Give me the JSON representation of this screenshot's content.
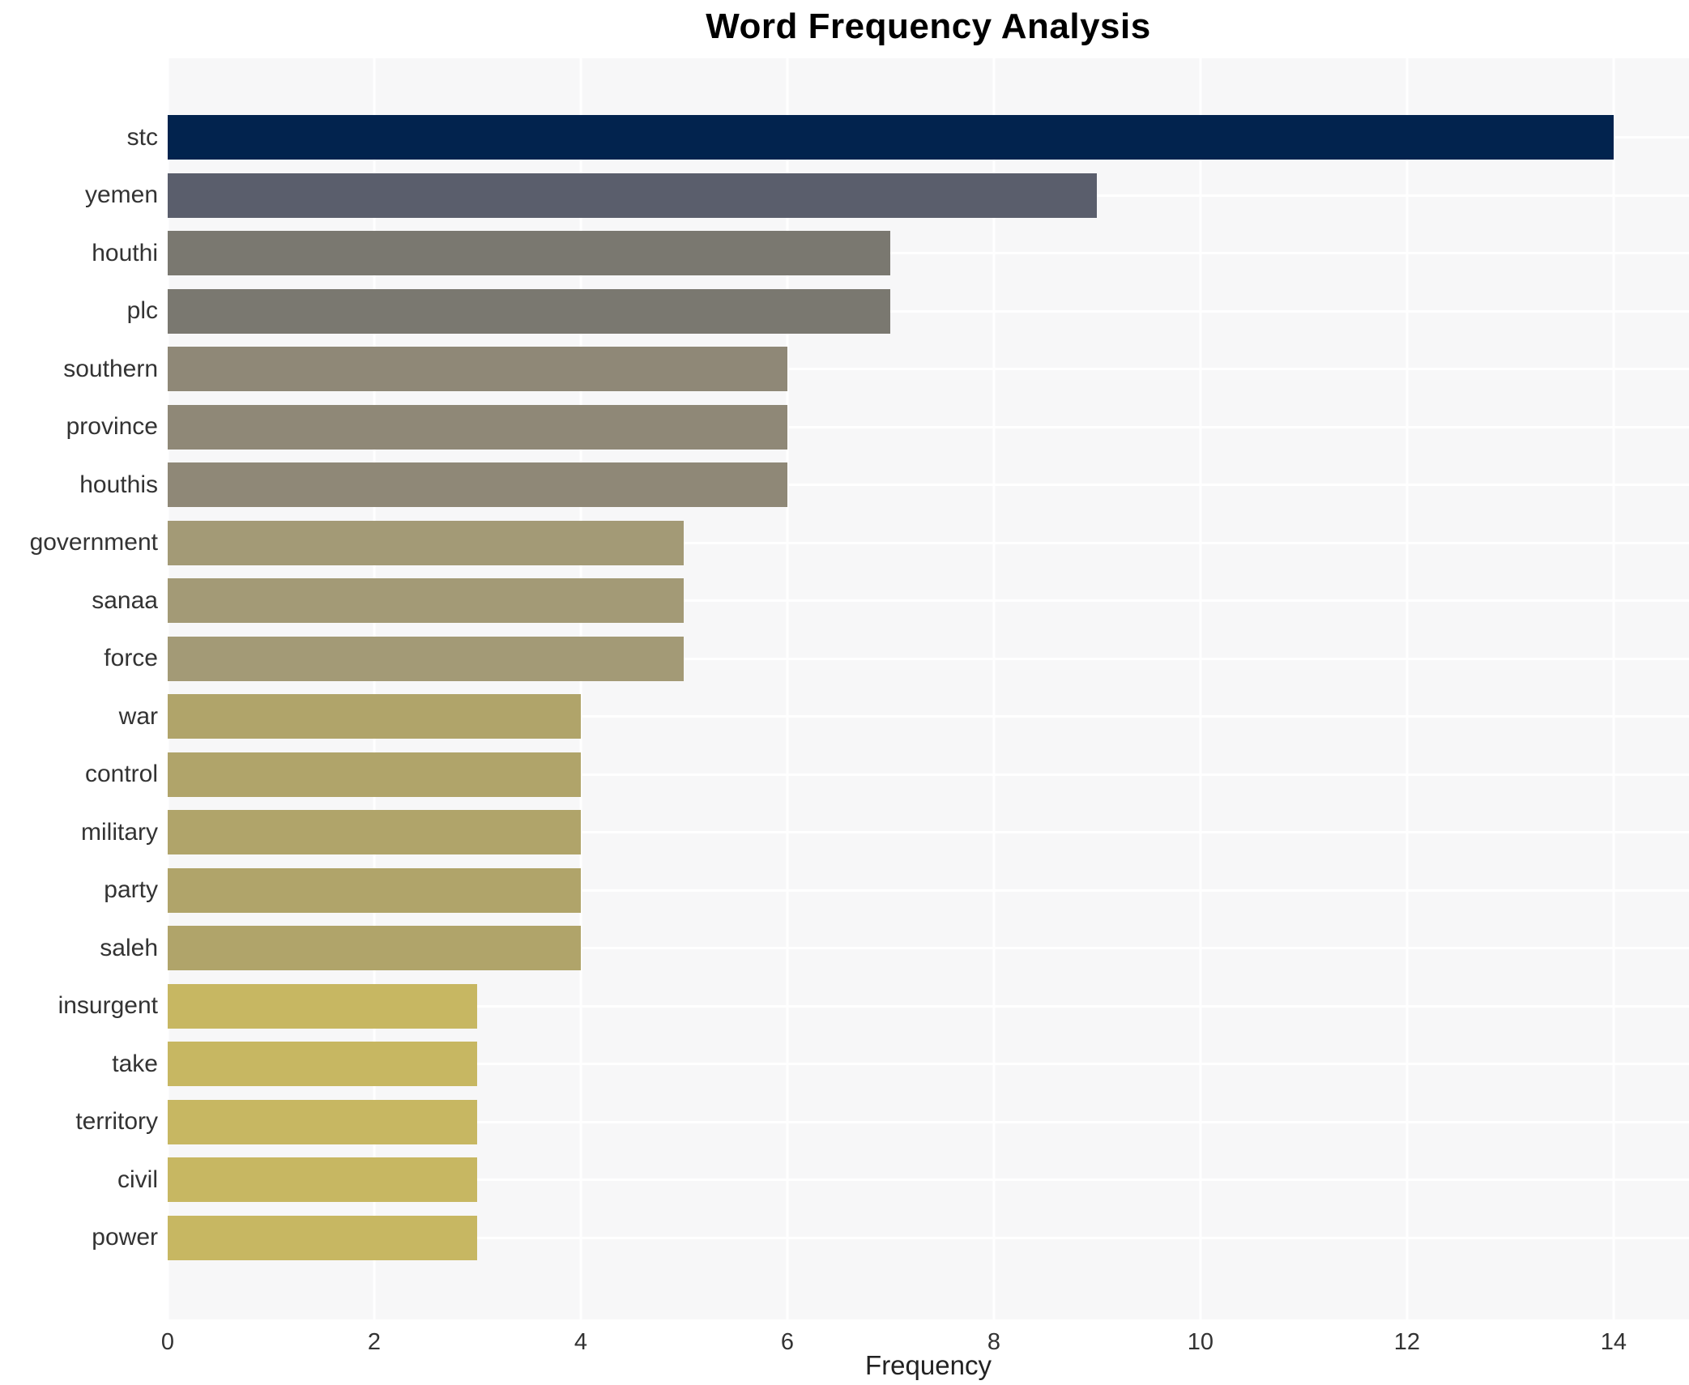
{
  "title": "Word Frequency Analysis",
  "chart_data": {
    "type": "bar",
    "orientation": "horizontal",
    "title": "Word Frequency Analysis",
    "xlabel": "Frequency",
    "ylabel": "",
    "categories": [
      "stc",
      "yemen",
      "houthi",
      "plc",
      "southern",
      "province",
      "houthis",
      "government",
      "sanaa",
      "force",
      "war",
      "control",
      "military",
      "party",
      "saleh",
      "insurgent",
      "take",
      "territory",
      "civil",
      "power"
    ],
    "values": [
      14,
      9,
      7,
      7,
      6,
      6,
      6,
      5,
      5,
      5,
      4,
      4,
      4,
      4,
      4,
      3,
      3,
      3,
      3,
      3
    ],
    "bar_colors": [
      "#02234e",
      "#5a5e6c",
      "#7a7870",
      "#7a7870",
      "#8f8877",
      "#8f8877",
      "#8f8877",
      "#a39a76",
      "#a39a76",
      "#a39a76",
      "#b0a46a",
      "#b0a46a",
      "#b0a46a",
      "#b0a46a",
      "#b0a46a",
      "#c7b762",
      "#c7b762",
      "#c7b762",
      "#c7b762",
      "#c7b762"
    ],
    "x_ticks": [
      0,
      2,
      4,
      6,
      8,
      10,
      12,
      14
    ],
    "xlim": [
      0,
      14.73
    ],
    "grid": true,
    "legend_position": "none",
    "plot_background": "#f7f7f8",
    "grid_color": "#ffffff",
    "text_color": "#333333"
  }
}
